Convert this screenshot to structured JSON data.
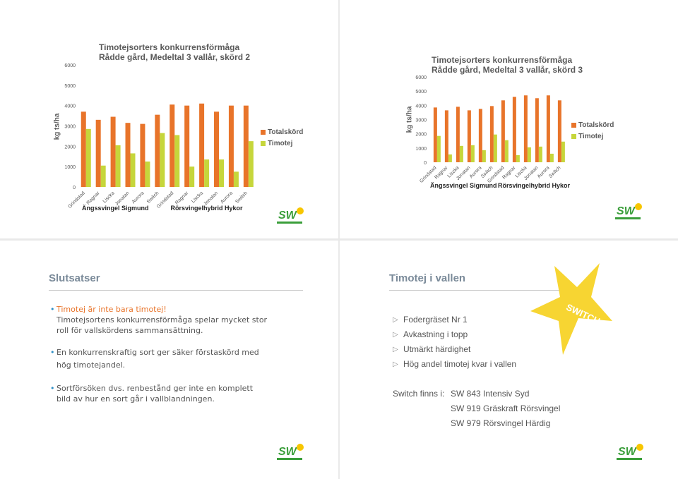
{
  "slide1": {
    "title_line1": "Timotejsorters konkurrensförmåga",
    "title_line2": "Rådde gård, Medeltal 3 vallår, skörd 2",
    "ylabel": "kg ts/ha",
    "legend": [
      "Totalskörd",
      "Timotej"
    ]
  },
  "slide2": {
    "title_line1": "Timotejsorters konkurrensförmåga",
    "title_line2": "Rådde gård, Medeltal 3 vallår, skörd 3",
    "ylabel": "kg ts/ha",
    "legend": [
      "Totalskörd",
      "Timotej"
    ]
  },
  "slide3": {
    "heading": "Slutsatser",
    "bullet1_line1": "Timotej är inte bara timotej!",
    "bullet1_line2": "Timotejsortens konkurrensförmåga spelar mycket stor",
    "bullet1_line3": "roll för vallskördens sammansättning.",
    "bullet2_line1": "En konkurrenskraftig sort ger säker förstaskörd med",
    "bullet2_line2": "hög timotejandel.",
    "bullet3_line1": "Sortförsöken dvs. renbestånd ger inte en komplett",
    "bullet3_line2": "bild av hur en sort går i vallblandningen."
  },
  "slide4": {
    "heading": "Timotej i vallen",
    "star_text": "SWITCH",
    "points": [
      "Fodergräset Nr 1",
      "Avkastning i topp",
      "Utmärkt härdighet",
      "Hög andel timotej kvar i vallen"
    ],
    "switch_label": "Switch finns i:",
    "products": [
      "SW 843 Intensiv Syd",
      "SW 919 Gräskraft Rörsvingel",
      "SW 979 Rörsvingel Härdig"
    ]
  },
  "logo_text": "SW",
  "colors": {
    "total": "#e8742a",
    "timotej": "#c6d63b",
    "accent": "#e8742a",
    "heading": "#7a8a99",
    "logo_green": "#3a9e3a",
    "star": "#f7d532"
  },
  "chart_data": [
    {
      "type": "bar",
      "title": "Timotejsorters konkurrensförmåga Rådde gård, Medeltal 3 vallår, skörd 2",
      "ylabel": "kg ts/ha",
      "ylim": [
        0,
        6000
      ],
      "yticks": [
        0,
        1000,
        2000,
        3000,
        4000,
        5000,
        6000
      ],
      "categories": [
        "Grindstad",
        "Ragnar",
        "Liscka",
        "Jonatan",
        "Aurora",
        "Switch",
        "Grindstad",
        "Ragnar",
        "Liscka",
        "Jonatan",
        "Aurora",
        "Switch"
      ],
      "groups": [
        "Ängssvingel Sigmund",
        "Rörsvingelhybrid Hykor"
      ],
      "legend_position": "right",
      "series": [
        {
          "name": "Totalskörd",
          "values": [
            3700,
            3300,
            3450,
            3150,
            3100,
            3550,
            4050,
            4000,
            4100,
            3700,
            4000,
            4000
          ]
        },
        {
          "name": "Timotej",
          "values": [
            2850,
            1050,
            2050,
            1650,
            1250,
            2650,
            2550,
            1000,
            1350,
            1350,
            750,
            2250
          ]
        }
      ]
    },
    {
      "type": "bar",
      "title": "Timotejsorters konkurrensförmåga Rådde gård, Medeltal 3 vallår, skörd 3",
      "ylabel": "kg ts/ha",
      "ylim": [
        0,
        6000
      ],
      "yticks": [
        0,
        1000,
        2000,
        3000,
        4000,
        5000,
        6000
      ],
      "categories": [
        "Grindstad",
        "Ragnar",
        "Liscka",
        "Jonatan",
        "Aurora",
        "Switch",
        "Grindstad",
        "Ragnar",
        "Liscka",
        "Jonatan",
        "Aurora",
        "Switch"
      ],
      "groups": [
        "Ängssvingel Sigmund",
        "Rörsvingelhybrid Hykor"
      ],
      "legend_position": "right",
      "series": [
        {
          "name": "Totalskörd",
          "values": [
            3850,
            3650,
            3900,
            3650,
            3750,
            3950,
            4350,
            4600,
            4700,
            4500,
            4700,
            4350
          ]
        },
        {
          "name": "Timotej",
          "values": [
            1850,
            550,
            1150,
            1200,
            850,
            1950,
            1550,
            500,
            1050,
            1100,
            600,
            1450
          ]
        }
      ]
    }
  ]
}
